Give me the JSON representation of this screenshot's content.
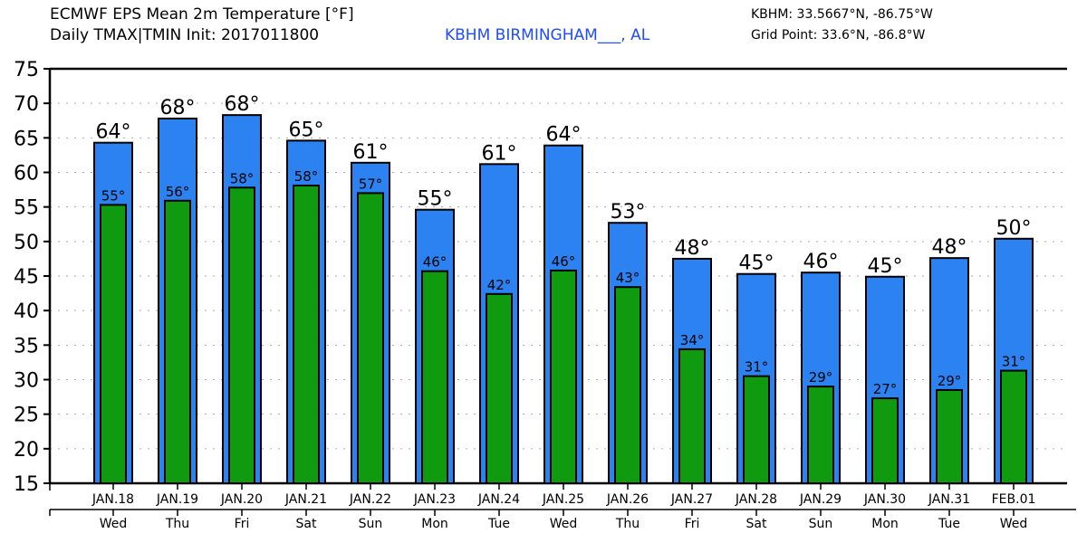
{
  "header": {
    "title_line1": "ECMWF EPS Mean 2m Temperature [°F]",
    "title_line2": "Daily TMAX|TMIN Init: 2017011800",
    "station": "KBHM BIRMINGHAM___, AL",
    "station_coords": "KBHM: 33.5667°N, -86.75°W",
    "grid_point": "Grid Point: 33.6°N, -86.8°W"
  },
  "colors": {
    "tmax": "#2b82f0",
    "tmin": "#0f9a10",
    "station": "#1f4cff"
  },
  "chart_data": {
    "type": "bar",
    "title": "ECMWF EPS Mean 2m Temperature [°F]",
    "ylabel": "",
    "xlabel": "",
    "ylim": [
      15,
      75
    ],
    "yticks": [
      15,
      20,
      25,
      30,
      35,
      40,
      45,
      50,
      55,
      60,
      65,
      70,
      75
    ],
    "grid": true,
    "categories": [
      "JAN.18",
      "JAN.19",
      "JAN.20",
      "JAN.21",
      "JAN.22",
      "JAN.23",
      "JAN.24",
      "JAN.25",
      "JAN.26",
      "JAN.27",
      "JAN.28",
      "JAN.29",
      "JAN.30",
      "JAN.31",
      "FEB.01"
    ],
    "weekdays": [
      "Wed",
      "Thu",
      "Fri",
      "Sat",
      "Sun",
      "Mon",
      "Tue",
      "Wed",
      "Thu",
      "Fri",
      "Sat",
      "Sun",
      "Mon",
      "Tue",
      "Wed"
    ],
    "series": [
      {
        "name": "TMAX",
        "values": [
          64.3,
          67.8,
          68.3,
          64.6,
          61.4,
          54.6,
          61.2,
          63.9,
          52.7,
          47.5,
          45.3,
          45.5,
          44.9,
          47.6,
          50.4
        ],
        "labels": [
          "64°",
          "68°",
          "68°",
          "65°",
          "61°",
          "55°",
          "61°",
          "64°",
          "53°",
          "48°",
          "45°",
          "46°",
          "45°",
          "48°",
          "50°"
        ]
      },
      {
        "name": "TMIN",
        "values": [
          55.3,
          55.9,
          57.8,
          58.1,
          57.0,
          45.7,
          42.4,
          45.8,
          43.4,
          34.4,
          30.5,
          29.0,
          27.3,
          28.5,
          31.3
        ],
        "labels": [
          "55°",
          "56°",
          "58°",
          "58°",
          "57°",
          "46°",
          "42°",
          "46°",
          "43°",
          "34°",
          "31°",
          "29°",
          "27°",
          "29°",
          "31°"
        ]
      }
    ]
  }
}
